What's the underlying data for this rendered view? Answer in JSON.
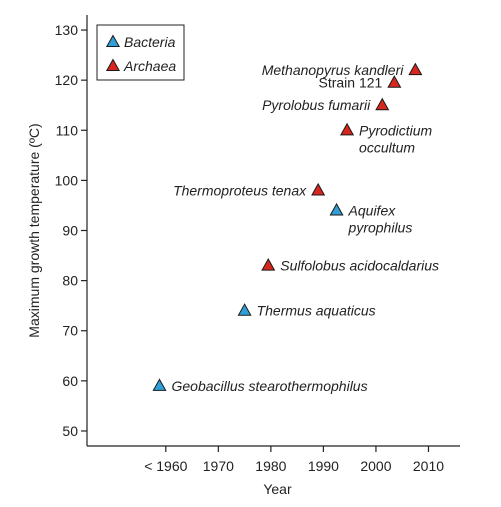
{
  "chart_data": {
    "type": "scatter",
    "xlabel": "Year",
    "ylabel": "Maximum growth temperature (ºC)",
    "xlim": [
      1945,
      2016
    ],
    "ylim": [
      47,
      133
    ],
    "x_ticks": [
      {
        "value": 1960,
        "label": "< 1960"
      },
      {
        "value": 1970,
        "label": "1970"
      },
      {
        "value": 1980,
        "label": "1980"
      },
      {
        "value": 1990,
        "label": "1990"
      },
      {
        "value": 2000,
        "label": "2000"
      },
      {
        "value": 2010,
        "label": "2010"
      }
    ],
    "y_ticks": [
      {
        "value": 50,
        "label": "50"
      },
      {
        "value": 60,
        "label": "60"
      },
      {
        "value": 70,
        "label": "70"
      },
      {
        "value": 80,
        "label": "80"
      },
      {
        "value": 90,
        "label": "90"
      },
      {
        "value": 100,
        "label": "100"
      },
      {
        "value": 110,
        "label": "110"
      },
      {
        "value": 120,
        "label": "120"
      },
      {
        "value": 130,
        "label": "130"
      }
    ],
    "grid": false,
    "legend_position": "top-left",
    "series": [
      {
        "name": "Bacteria",
        "color": "#2f9fd6",
        "marker": "triangle",
        "points": [
          {
            "x": 1958.8,
            "y": 59,
            "label": [
              "Geobacillus stearothermophilus"
            ],
            "italic": true,
            "anchor": "right"
          },
          {
            "x": 1975,
            "y": 74,
            "label": [
              "Thermus aquaticus"
            ],
            "italic": true,
            "anchor": "right"
          },
          {
            "x": 1992.5,
            "y": 94,
            "label": [
              "Aquifex",
              "pyrophilus"
            ],
            "italic": true,
            "anchor": "right"
          }
        ]
      },
      {
        "name": "Archaea",
        "color": "#d7261e",
        "marker": "triangle",
        "points": [
          {
            "x": 1979.5,
            "y": 83,
            "label": [
              "Sulfolobus acidocaldarius"
            ],
            "italic": true,
            "anchor": "right"
          },
          {
            "x": 1989,
            "y": 98,
            "label": [
              "Thermoproteus tenax"
            ],
            "italic": true,
            "anchor": "left"
          },
          {
            "x": 1994.5,
            "y": 110,
            "label": [
              "Pyrodictium",
              "occultum"
            ],
            "italic": true,
            "anchor": "right"
          },
          {
            "x": 2001.2,
            "y": 115,
            "label": [
              "Pyrolobus fumarii"
            ],
            "italic": true,
            "anchor": "left"
          },
          {
            "x": 2003.5,
            "y": 119.5,
            "label": [
              "Strain 121"
            ],
            "italic": false,
            "anchor": "left"
          },
          {
            "x": 2007.5,
            "y": 122,
            "label": [
              "Methanopyrus kandleri"
            ],
            "italic": true,
            "anchor": "left"
          }
        ]
      }
    ]
  }
}
